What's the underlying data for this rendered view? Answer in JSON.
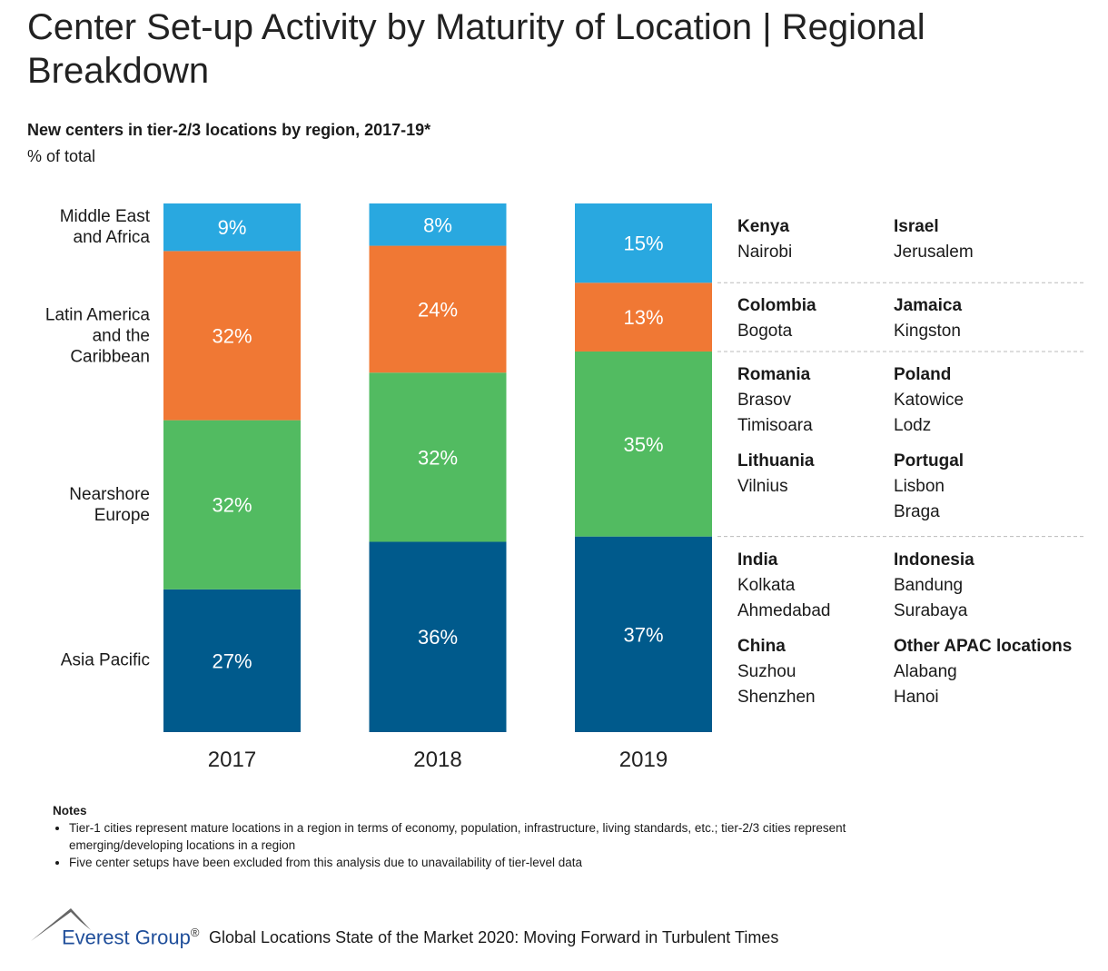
{
  "chart_data": {
    "type": "bar",
    "stacked": true,
    "title": "Center Set-up Activity by Maturity of Location | Regional Breakdown",
    "subtitle": "New centers in tier-2/3 locations by region, 2017-19*",
    "y_label": "% of total",
    "categories": [
      "2017",
      "2018",
      "2019"
    ],
    "ylim": [
      0,
      100
    ],
    "series": [
      {
        "name": "Asia Pacific",
        "color": "#005a8c",
        "values": [
          27,
          36,
          37
        ],
        "value_labels": [
          "27%",
          "36%",
          "37%"
        ]
      },
      {
        "name": "Nearshore Europe",
        "color": "#52bb61",
        "values": [
          32,
          32,
          35
        ],
        "value_labels": [
          "32%",
          "32%",
          "35%"
        ]
      },
      {
        "name": "Latin America and the Caribbean",
        "color": "#f07834",
        "values": [
          32,
          24,
          13
        ],
        "value_labels": [
          "32%",
          "24%",
          "13%"
        ]
      },
      {
        "name": "Middle East and Africa",
        "color": "#29a8e0",
        "values": [
          9,
          8,
          15
        ],
        "value_labels": [
          "9%",
          "8%",
          "15%"
        ]
      }
    ]
  },
  "locations": {
    "groups": [
      {
        "countries": [
          {
            "name": "Kenya",
            "cities": [
              "Nairobi"
            ]
          },
          {
            "name": "Israel",
            "cities": [
              "Jerusalem"
            ]
          }
        ]
      },
      {
        "countries": [
          {
            "name": "Colombia",
            "cities": [
              "Bogota"
            ]
          },
          {
            "name": "Jamaica",
            "cities": [
              "Kingston"
            ]
          }
        ]
      },
      {
        "countries": [
          {
            "name": "Romania",
            "cities": [
              "Brasov",
              "Timisoara"
            ]
          },
          {
            "name": "Poland",
            "cities": [
              "Katowice",
              "Lodz"
            ]
          },
          {
            "name": "Lithuania",
            "cities": [
              "Vilnius"
            ]
          },
          {
            "name": "Portugal",
            "cities": [
              "Lisbon",
              "Braga"
            ]
          }
        ]
      },
      {
        "countries": [
          {
            "name": "India",
            "cities": [
              "Kolkata",
              "Ahmedabad"
            ]
          },
          {
            "name": "Indonesia",
            "cities": [
              "Bandung",
              "Surabaya"
            ]
          },
          {
            "name": "China",
            "cities": [
              "Suzhou",
              "Shenzhen"
            ]
          },
          {
            "name": "Other APAC locations",
            "cities": [
              "Alabang",
              "Hanoi"
            ]
          }
        ]
      }
    ]
  },
  "notes": {
    "heading": "Notes",
    "items": [
      "Tier-1 cities represent mature locations in a region in terms of economy, population, infrastructure, living standards, etc.; tier-2/3 cities represent emerging/developing locations in a region",
      "Five center setups have been excluded from this analysis due to unavailability of tier-level data"
    ]
  },
  "footer": {
    "brand": "Everest Group",
    "mark": "®",
    "text": "Global Locations State of the Market 2020: Moving Forward in Turbulent Times"
  }
}
